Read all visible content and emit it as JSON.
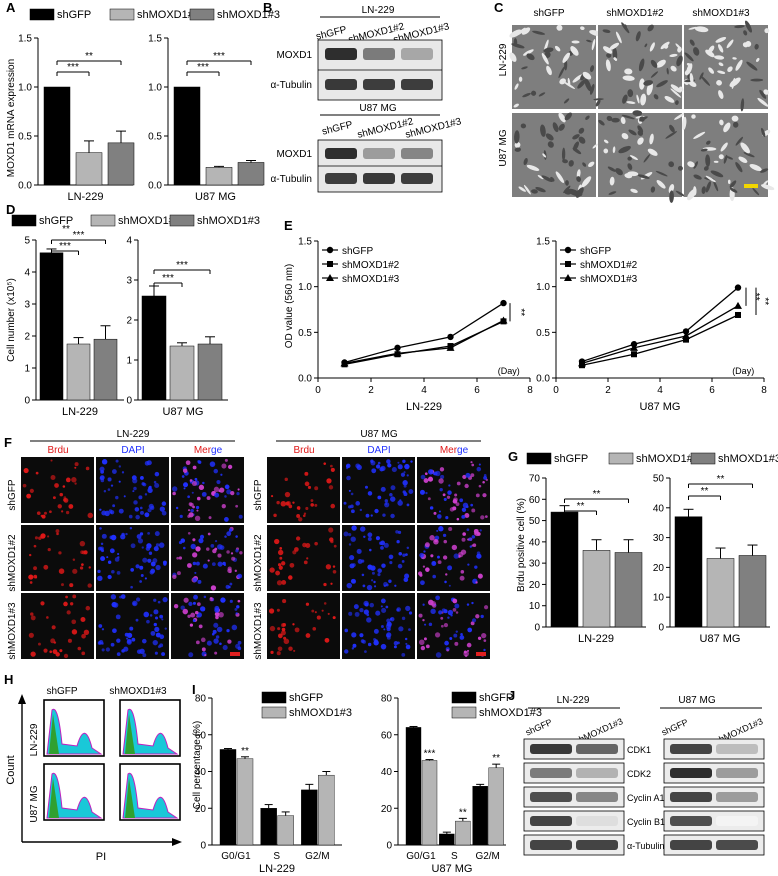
{
  "colors": {
    "shGFP": "#000000",
    "shMOXD1_2": "#b5b5b5",
    "shMOXD1_3": "#808080",
    "brdu": "#e01818",
    "dapi": "#2030ff",
    "pi_fill": "#19c8d8",
    "pi_line": "#c020c0",
    "pi_inner": "#30a030",
    "scale_yellow": "#f2d600",
    "scale_red": "#e02020"
  },
  "panels": {
    "A": "A",
    "B": "B",
    "C": "C",
    "D": "D",
    "E": "E",
    "F": "F",
    "G": "G",
    "H": "H",
    "I": "I",
    "J": "J"
  },
  "legend3": [
    "shGFP",
    "shMOXD1#2",
    "shMOXD1#3"
  ],
  "legend2": [
    "shGFP",
    "shMOXD1#3"
  ],
  "cells": {
    "ln": "LN-229",
    "u87": "U87 MG"
  },
  "sig": {
    "two": "**",
    "three": "***"
  },
  "panelA": {
    "ylabel": "MOXD1 mRNA expression",
    "yticks": [
      "0.0",
      "0.5",
      "1.0",
      "1.5"
    ]
  },
  "panelB": {
    "header_ln": "LN-229",
    "header_u87": "U87 MG",
    "cols": [
      "shGFP",
      "shMOXD1#2",
      "shMOXD1#3"
    ],
    "rows": [
      "MOXD1",
      "α-Tubulin"
    ]
  },
  "panelC": {
    "cols": [
      "shGFP",
      "shMOXD1#2",
      "shMOXD1#3"
    ],
    "rows": [
      "LN-229",
      "U87 MG"
    ]
  },
  "panelD": {
    "ylabel": "Cell number (x10⁵)",
    "yticks_ln": [
      "0",
      "1",
      "2",
      "3",
      "4",
      "5"
    ],
    "yticks_u87": [
      "0",
      "1",
      "2",
      "3",
      "4"
    ]
  },
  "panelE": {
    "ylabel": "OD value (560 nm)",
    "yticks": [
      "0.0",
      "0.5",
      "1.0",
      "1.5"
    ],
    "xticks": [
      "0",
      "2",
      "4",
      "6",
      "8"
    ],
    "xunit": "(Day)"
  },
  "panelF": {
    "cols": [
      "Brdu",
      "DAPI",
      "Merge"
    ],
    "rows": [
      "shGFP",
      "shMOXD1#2",
      "shMOXD1#3"
    ]
  },
  "panelG": {
    "ylabel": "Brdu positive cell (%)",
    "yticks_ln": [
      "0",
      "10",
      "20",
      "30",
      "40",
      "50",
      "60",
      "70"
    ],
    "yticks_u87": [
      "0",
      "10",
      "20",
      "30",
      "40",
      "50"
    ]
  },
  "panelH": {
    "cols": [
      "shGFP",
      "shMOXD1#3"
    ],
    "rows": [
      "LN-229",
      "U87 MG"
    ],
    "ylabel": "Count",
    "xlabel": "PI"
  },
  "panelI": {
    "ylabel": "Cell percentage (%)",
    "yticks": [
      "0",
      "20",
      "40",
      "60",
      "80"
    ],
    "cats": [
      "G0/G1",
      "S",
      "G2/M"
    ]
  },
  "panelJ": {
    "cols": [
      "shGFP",
      "shMOXD1#3"
    ],
    "rows": [
      "CDK1",
      "CDK2",
      "Cyclin A1",
      "Cyclin B1",
      "α-Tubulin"
    ]
  },
  "chart_data": [
    {
      "panel": "A",
      "cell": "LN-229",
      "type": "bar",
      "categories": [
        "shGFP",
        "shMOXD1#2",
        "shMOXD1#3"
      ],
      "values": [
        1.0,
        0.33,
        0.43
      ],
      "errors": [
        0,
        0.12,
        0.12
      ],
      "ylim": [
        0,
        1.5
      ],
      "ylabel": "MOXD1 mRNA expression"
    },
    {
      "panel": "A",
      "cell": "U87 MG",
      "type": "bar",
      "categories": [
        "shGFP",
        "shMOXD1#2",
        "shMOXD1#3"
      ],
      "values": [
        1.0,
        0.18,
        0.23
      ],
      "errors": [
        0,
        0.01,
        0.02
      ],
      "ylim": [
        0,
        1.5
      ]
    },
    {
      "panel": "D",
      "cell": "LN-229",
      "type": "bar",
      "categories": [
        "shGFP",
        "shMOXD1#2",
        "shMOXD1#3"
      ],
      "values": [
        4.6,
        1.75,
        1.9
      ],
      "errors": [
        0.12,
        0.2,
        0.42
      ],
      "ylim": [
        0,
        5
      ],
      "ylabel": "Cell number (x10⁵)"
    },
    {
      "panel": "D",
      "cell": "U87 MG",
      "type": "bar",
      "categories": [
        "shGFP",
        "shMOXD1#2",
        "shMOXD1#3"
      ],
      "values": [
        2.6,
        1.35,
        1.4
      ],
      "errors": [
        0.25,
        0.08,
        0.18
      ],
      "ylim": [
        0,
        4
      ]
    },
    {
      "panel": "E",
      "cell": "LN-229",
      "type": "line",
      "x": [
        1,
        3,
        5,
        7
      ],
      "series": [
        {
          "name": "shGFP",
          "values": [
            0.17,
            0.33,
            0.45,
            0.82
          ]
        },
        {
          "name": "shMOXD1#2",
          "values": [
            0.15,
            0.26,
            0.35,
            0.62
          ]
        },
        {
          "name": "shMOXD1#3",
          "values": [
            0.16,
            0.27,
            0.33,
            0.63
          ]
        }
      ],
      "xlim": [
        0,
        8
      ],
      "ylim": [
        0,
        1.5
      ],
      "ylabel": "OD value (560 nm)"
    },
    {
      "panel": "E",
      "cell": "U87 MG",
      "type": "line",
      "x": [
        1,
        3,
        5,
        7
      ],
      "series": [
        {
          "name": "shGFP",
          "values": [
            0.18,
            0.37,
            0.51,
            0.99
          ]
        },
        {
          "name": "shMOXD1#2",
          "values": [
            0.14,
            0.26,
            0.42,
            0.69
          ]
        },
        {
          "name": "shMOXD1#3",
          "values": [
            0.16,
            0.33,
            0.46,
            0.79
          ]
        }
      ],
      "xlim": [
        0,
        8
      ],
      "ylim": [
        0,
        1.5
      ]
    },
    {
      "panel": "G",
      "cell": "LN-229",
      "type": "bar",
      "categories": [
        "shGFP",
        "shMOXD1#2",
        "shMOXD1#3"
      ],
      "values": [
        54,
        36,
        35
      ],
      "errors": [
        3,
        5,
        6
      ],
      "ylim": [
        0,
        70
      ],
      "ylabel": "Brdu positive cell (%)"
    },
    {
      "panel": "G",
      "cell": "U87 MG",
      "type": "bar",
      "categories": [
        "shGFP",
        "shMOXD1#2",
        "shMOXD1#3"
      ],
      "values": [
        37,
        23,
        24
      ],
      "errors": [
        2.5,
        3.5,
        3.5
      ],
      "ylim": [
        0,
        50
      ]
    },
    {
      "panel": "I",
      "cell": "LN-229",
      "type": "bar",
      "categories": [
        "G0/G1",
        "S",
        "G2/M"
      ],
      "series": [
        {
          "name": "shGFP",
          "values": [
            52,
            20,
            30
          ],
          "errors": [
            0.5,
            2,
            3
          ]
        },
        {
          "name": "shMOXD1#3",
          "values": [
            47,
            16,
            38
          ],
          "errors": [
            1,
            2,
            2
          ]
        }
      ],
      "ylim": [
        0,
        80
      ],
      "ylabel": "Cell percentage (%)"
    },
    {
      "panel": "I",
      "cell": "U87 MG",
      "type": "bar",
      "categories": [
        "G0/G1",
        "S",
        "G2/M"
      ],
      "series": [
        {
          "name": "shGFP",
          "values": [
            64,
            6,
            32
          ],
          "errors": [
            0.5,
            1,
            1
          ]
        },
        {
          "name": "shMOXD1#3",
          "values": [
            46,
            13,
            42
          ],
          "errors": [
            0.5,
            1.5,
            2
          ]
        }
      ],
      "ylim": [
        0,
        80
      ]
    }
  ]
}
